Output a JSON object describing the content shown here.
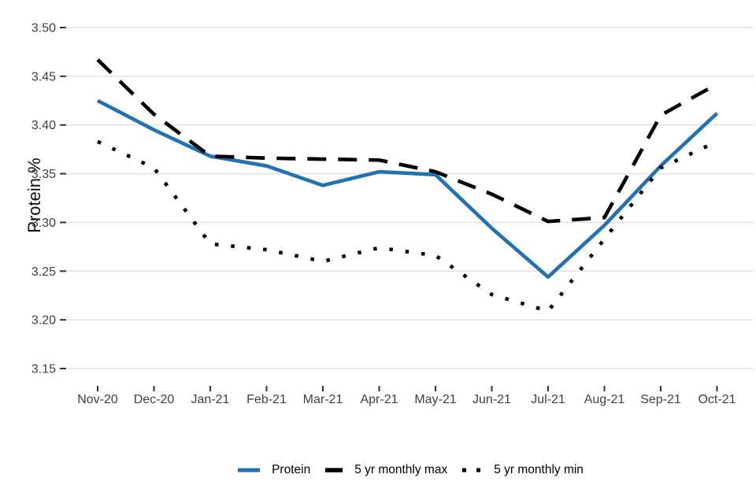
{
  "chart_data": {
    "type": "line",
    "title": "",
    "xlabel": "",
    "ylabel": "Protein %",
    "categories": [
      "Nov-20",
      "Dec-20",
      "Jan-21",
      "Feb-21",
      "Mar-21",
      "Apr-21",
      "May-21",
      "Jun-21",
      "Jul-21",
      "Aug-21",
      "Sep-21",
      "Oct-21"
    ],
    "y_tick_labels": [
      "3.50",
      "3.45",
      "3.40",
      "3.35",
      "3.30",
      "3.25",
      "3.20",
      "3.15"
    ],
    "ylim": [
      3.15,
      3.5
    ],
    "grid": "horizontal",
    "legend_position": "bottom",
    "series": [
      {
        "name": "Protein",
        "line_style": "solid",
        "color": "#2171b5",
        "values": [
          3.425,
          3.395,
          3.368,
          3.358,
          3.338,
          3.352,
          3.349,
          3.294,
          3.244,
          3.297,
          3.358,
          3.412
        ]
      },
      {
        "name": "5 yr monthly max",
        "line_style": "dashed",
        "color": "#000000",
        "values": [
          3.467,
          3.411,
          3.368,
          3.366,
          3.365,
          3.364,
          3.352,
          3.329,
          3.301,
          3.305,
          3.41,
          3.442
        ]
      },
      {
        "name": "5 yr monthly min",
        "line_style": "dotted",
        "color": "#000000",
        "values": [
          3.383,
          3.356,
          3.278,
          3.272,
          3.26,
          3.274,
          3.266,
          3.226,
          3.209,
          3.283,
          3.356,
          3.383
        ]
      }
    ]
  },
  "colors": {
    "background": "#ffffff",
    "gridline": "#e3e3e3",
    "axis_tick": "#333333",
    "tick_label": "#404040",
    "axis_title": "#111111",
    "legend_text": "#000000",
    "protein_blue": "#2171b5"
  }
}
